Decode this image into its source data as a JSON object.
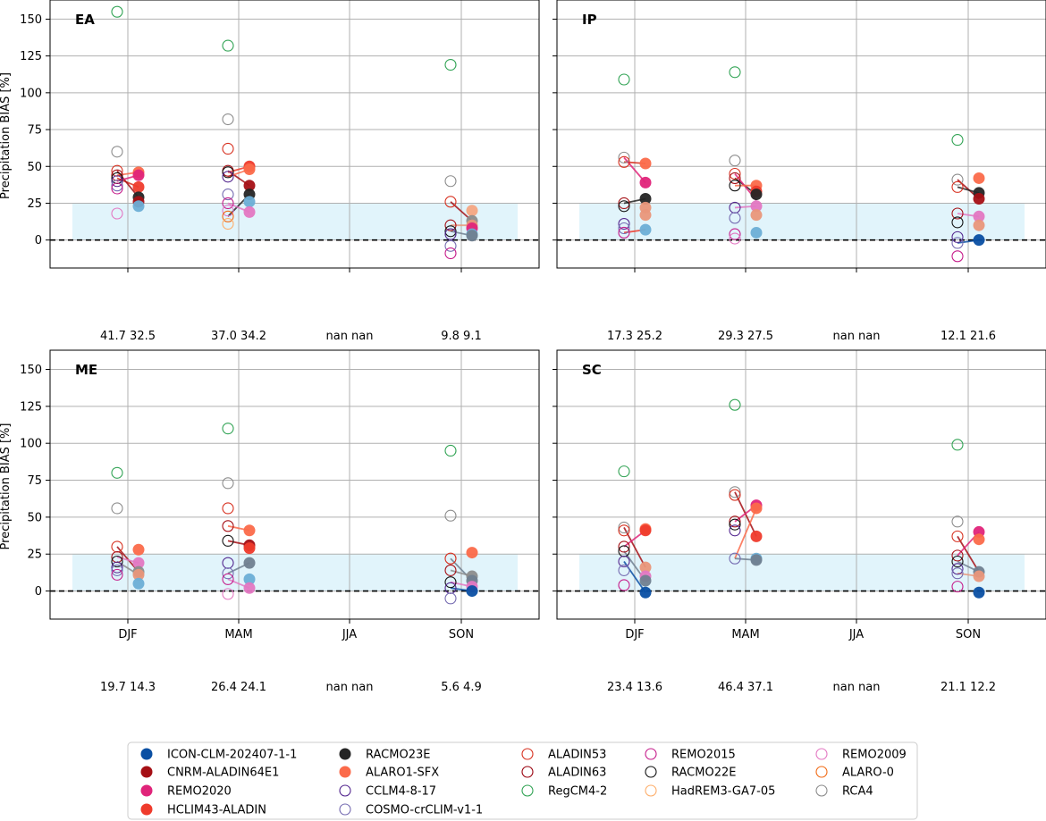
{
  "chart_data": {
    "type": "scatter",
    "ylabel": "Precipitation BIAS [%]",
    "categories": [
      "DJF",
      "MAM",
      "JJA",
      "SON"
    ],
    "ylim": [
      -19,
      163
    ],
    "yticks": [
      0,
      25,
      50,
      75,
      100,
      125,
      150
    ],
    "grid": true,
    "reference_line": 0,
    "shaded_band": [
      0,
      25
    ],
    "legend_position": "bottom",
    "legend": [
      {
        "name": "ICON-CLM-202407-1-1",
        "color": "#0a4fa3",
        "filled": true
      },
      {
        "name": "CNRM-ALADIN64E1",
        "color": "#a50f15",
        "filled": true
      },
      {
        "name": "REMO2020",
        "color": "#e0247a",
        "filled": true
      },
      {
        "name": "HCLIM43-ALADIN",
        "color": "#ef3b2c",
        "filled": true
      },
      {
        "name": "RACMO23E",
        "color": "#252525",
        "filled": true
      },
      {
        "name": "ALARO1-SFX",
        "color": "#fb6a4a",
        "filled": true
      },
      {
        "name": "CCLM4-8-17",
        "color": "#54278f",
        "filled": false
      },
      {
        "name": "COSMO-crCLIM-v1-1",
        "color": "#756bb1",
        "filled": false
      },
      {
        "name": "ALADIN53",
        "color": "#d7301f",
        "filled": false
      },
      {
        "name": "ALADIN63",
        "color": "#99000d",
        "filled": false
      },
      {
        "name": "RegCM4-2",
        "color": "#31a354",
        "filled": false
      },
      {
        "name": "REMO2015",
        "color": "#c51b8a",
        "filled": false
      },
      {
        "name": "RACMO22E",
        "color": "#111111",
        "filled": false
      },
      {
        "name": "HadREM3-GA7-05",
        "color": "#fdae6b",
        "filled": false
      },
      {
        "name": "REMO2009",
        "color": "#e377c2",
        "filled": false
      },
      {
        "name": "ALARO-0",
        "color": "#f16913",
        "filled": false
      },
      {
        "name": "RCA4",
        "color": "#8c8c8c",
        "filled": false
      }
    ],
    "panels": [
      {
        "label": "EA",
        "stats": [
          [
            "41.7",
            "32.5"
          ],
          [
            "37.0",
            "34.2"
          ],
          [
            "nan",
            "nan"
          ],
          [
            "9.8",
            "9.1"
          ]
        ],
        "old_points": [
          {
            "season": 0,
            "values": [
              155,
              60,
              47,
              44,
              42,
              40,
              37,
              35,
              18
            ]
          },
          {
            "season": 1,
            "values": [
              132,
              82,
              62,
              47,
              46,
              43,
              31,
              25,
              20,
              16,
              11
            ]
          },
          {
            "season": 3,
            "values": [
              119,
              40,
              26,
              10,
              6,
              4,
              -4,
              -9
            ]
          }
        ],
        "new_points": [
          {
            "season": 0,
            "values": [
              46,
              44,
              36,
              29,
              26,
              23
            ],
            "colors": [
              "#fb6a4a",
              "#e0247a",
              "#ef3b2c",
              "#252525",
              "#a50f15",
              "#6baed6"
            ]
          },
          {
            "season": 1,
            "values": [
              50,
              48,
              37,
              31,
              26,
              19
            ],
            "colors": [
              "#ef3b2c",
              "#fb6a4a",
              "#a50f15",
              "#252525",
              "#6baed6",
              "#e377c2"
            ]
          },
          {
            "season": 3,
            "values": [
              20,
              13,
              10,
              8,
              4,
              3
            ],
            "colors": [
              "#f4a582",
              "#8c8c8c",
              "#e9967a",
              "#e0247a",
              "#6baed6",
              "#708090"
            ]
          }
        ],
        "links": [
          {
            "season": 0,
            "pairs": [
              [
                42,
                36,
                "#d7301f"
              ],
              [
                47,
                29,
                "#a50f15"
              ],
              [
                40,
                44,
                "#e0247a"
              ],
              [
                44,
                46,
                "#fb6a4a"
              ]
            ]
          },
          {
            "season": 1,
            "pairs": [
              [
                47,
                37,
                "#a50f15"
              ],
              [
                46,
                50,
                "#ef3b2c"
              ],
              [
                43,
                48,
                "#fb6a4a"
              ],
              [
                16,
                31,
                "#252525"
              ],
              [
                25,
                19,
                "#e377c2"
              ]
            ]
          },
          {
            "season": 3,
            "pairs": [
              [
                26,
                13,
                "#a50f15"
              ],
              [
                10,
                10,
                "#e9967a"
              ],
              [
                6,
                3,
                "#708090"
              ]
            ]
          }
        ]
      },
      {
        "label": "IP",
        "stats": [
          [
            "17.3",
            "25.2"
          ],
          [
            "29.3",
            "27.5"
          ],
          [
            "nan",
            "nan"
          ],
          [
            "12.1",
            "21.6"
          ]
        ],
        "old_points": [
          {
            "season": 0,
            "values": [
              109,
              56,
              53,
              25,
              23,
              11,
              8,
              5
            ]
          },
          {
            "season": 1,
            "values": [
              114,
              54,
              45,
              42,
              37,
              22,
              15,
              4,
              1
            ]
          },
          {
            "season": 3,
            "values": [
              68,
              41,
              36,
              18,
              12,
              2,
              -2,
              -11
            ]
          }
        ],
        "new_points": [
          {
            "season": 0,
            "values": [
              52,
              39,
              28,
              22,
              17,
              7
            ],
            "colors": [
              "#fb6a4a",
              "#e0247a",
              "#252525",
              "#e9967a",
              "#e9967a",
              "#6baed6"
            ]
          },
          {
            "season": 1,
            "values": [
              37,
              33,
              31,
              23,
              17,
              5
            ],
            "colors": [
              "#fb6a4a",
              "#ef3b2c",
              "#252525",
              "#e377c2",
              "#e9967a",
              "#6baed6"
            ]
          },
          {
            "season": 3,
            "values": [
              42,
              32,
              28,
              16,
              10,
              0
            ],
            "colors": [
              "#fb6a4a",
              "#252525",
              "#a50f15",
              "#e377c2",
              "#e9967a",
              "#0a4fa3"
            ]
          }
        ],
        "links": [
          {
            "season": 0,
            "pairs": [
              [
                53,
                52,
                "#d7301f"
              ],
              [
                25,
                28,
                "#252525"
              ],
              [
                56,
                39,
                "#e0247a"
              ],
              [
                5,
                7,
                "#ef3b2c"
              ]
            ]
          },
          {
            "season": 1,
            "pairs": [
              [
                42,
                31,
                "#252525"
              ],
              [
                45,
                27,
                "#e0247a"
              ],
              [
                37,
                37,
                "#fb6a4a"
              ],
              [
                22,
                23,
                "#e377c2"
              ]
            ]
          },
          {
            "season": 3,
            "pairs": [
              [
                41,
                28,
                "#a50f15"
              ],
              [
                36,
                32,
                "#252525"
              ],
              [
                18,
                16,
                "#e377c2"
              ],
              [
                -2,
                0,
                "#0a4fa3"
              ]
            ]
          }
        ]
      },
      {
        "label": "ME",
        "stats": [
          [
            "19.7",
            "14.3"
          ],
          [
            "26.4",
            "24.1"
          ],
          [
            "nan",
            "nan"
          ],
          [
            "5.6",
            "4.9"
          ]
        ],
        "old_points": [
          {
            "season": 0,
            "values": [
              80,
              56,
              30,
              23,
              20,
              16,
              14,
              11
            ]
          },
          {
            "season": 1,
            "values": [
              110,
              73,
              56,
              44,
              34,
              19,
              12,
              8,
              -2
            ]
          },
          {
            "season": 3,
            "values": [
              95,
              51,
              22,
              14,
              6,
              2,
              -5
            ]
          }
        ],
        "new_points": [
          {
            "season": 0,
            "values": [
              28,
              19,
              13,
              11,
              5
            ],
            "colors": [
              "#fb6a4a",
              "#e377c2",
              "#8c8c8c",
              "#e9967a",
              "#6baed6"
            ]
          },
          {
            "season": 1,
            "values": [
              41,
              31,
              29,
              19,
              8,
              2
            ],
            "colors": [
              "#fb6a4a",
              "#a50f15",
              "#ef3b2c",
              "#708090",
              "#6baed6",
              "#e377c2"
            ]
          },
          {
            "season": 3,
            "values": [
              26,
              10,
              7,
              3,
              0
            ],
            "colors": [
              "#fb6a4a",
              "#8c8c8c",
              "#708090",
              "#e377c2",
              "#0a4fa3"
            ]
          }
        ],
        "links": [
          {
            "season": 0,
            "pairs": [
              [
                30,
                13,
                "#a50f15"
              ],
              [
                23,
                19,
                "#e377c2"
              ],
              [
                20,
                11,
                "#8c8c8c"
              ]
            ]
          },
          {
            "season": 1,
            "pairs": [
              [
                34,
                31,
                "#a50f15"
              ],
              [
                44,
                41,
                "#fb6a4a"
              ],
              [
                12,
                19,
                "#708090"
              ],
              [
                8,
                2,
                "#e377c2"
              ]
            ]
          },
          {
            "season": 3,
            "pairs": [
              [
                22,
                7,
                "#708090"
              ],
              [
                14,
                10,
                "#8c8c8c"
              ],
              [
                6,
                3,
                "#e377c2"
              ],
              [
                2,
                0,
                "#0a4fa3"
              ]
            ]
          }
        ]
      },
      {
        "label": "SC",
        "stats": [
          [
            "23.4",
            "13.6"
          ],
          [
            "46.4",
            "37.1"
          ],
          [
            "nan",
            "nan"
          ],
          [
            "21.1",
            "12.2"
          ]
        ],
        "old_points": [
          {
            "season": 0,
            "values": [
              81,
              43,
              41,
              30,
              27,
              20,
              14,
              4
            ]
          },
          {
            "season": 1,
            "values": [
              126,
              67,
              65,
              47,
              45,
              41,
              22
            ]
          },
          {
            "season": 3,
            "values": [
              99,
              47,
              37,
              24,
              20,
              15,
              12,
              3
            ]
          }
        ],
        "new_points": [
          {
            "season": 0,
            "values": [
              42,
              41,
              16,
              10,
              7,
              -1
            ],
            "colors": [
              "#fb6a4a",
              "#ef3b2c",
              "#e9967a",
              "#e377c2",
              "#708090",
              "#0a4fa3"
            ]
          },
          {
            "season": 1,
            "values": [
              58,
              56,
              37,
              22,
              21
            ],
            "colors": [
              "#e0247a",
              "#fb6a4a",
              "#ef3b2c",
              "#6baed6",
              "#708090"
            ]
          },
          {
            "season": 3,
            "values": [
              40,
              35,
              13,
              10,
              -1
            ],
            "colors": [
              "#e0247a",
              "#fb6a4a",
              "#708090",
              "#e9967a",
              "#0a4fa3"
            ]
          }
        ],
        "links": [
          {
            "season": 0,
            "pairs": [
              [
                43,
                16,
                "#a50f15"
              ],
              [
                30,
                41,
                "#e0247a"
              ],
              [
                27,
                7,
                "#708090"
              ],
              [
                20,
                -1,
                "#0a4fa3"
              ]
            ]
          },
          {
            "season": 1,
            "pairs": [
              [
                67,
                37,
                "#a50f15"
              ],
              [
                47,
                58,
                "#e0247a"
              ],
              [
                22,
                56,
                "#fb6a4a"
              ],
              [
                22,
                21,
                "#708090"
              ]
            ]
          },
          {
            "season": 3,
            "pairs": [
              [
                37,
                13,
                "#a50f15"
              ],
              [
                24,
                40,
                "#e0247a"
              ],
              [
                20,
                13,
                "#708090"
              ],
              [
                12,
                10,
                "#e9967a"
              ]
            ]
          }
        ]
      }
    ]
  }
}
